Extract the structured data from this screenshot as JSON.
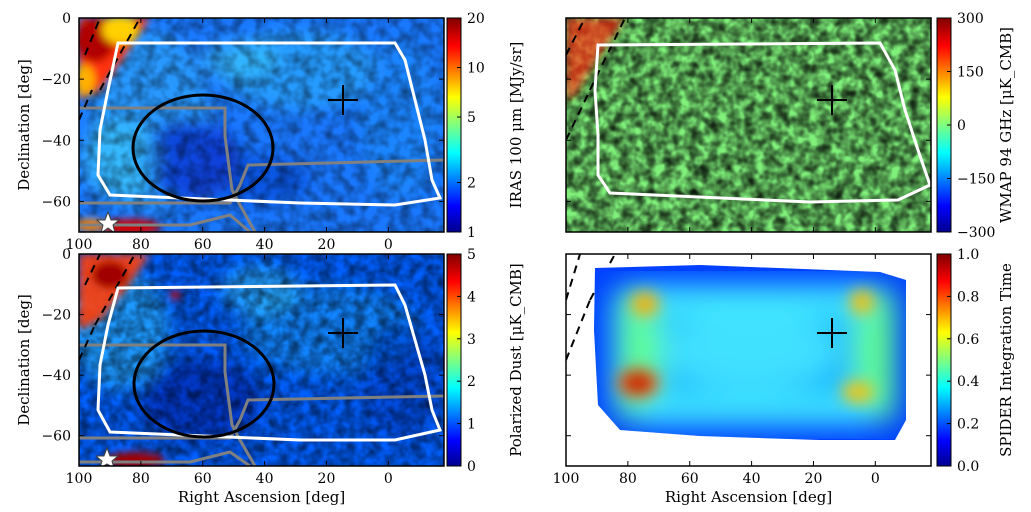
{
  "chart_data": [
    {
      "type": "heatmap",
      "title": "",
      "xlabel": "",
      "ylabel": "Declination [deg]",
      "xlim": [
        100,
        -18
      ],
      "ylim": [
        -70,
        0
      ],
      "x_ticks": [
        "100",
        "80",
        "60",
        "40",
        "20",
        "0"
      ],
      "y_ticks": [
        "0",
        "−20",
        "−40",
        "−60"
      ],
      "colorbar": {
        "label": "IRAS 100 μm [MJy/sr]",
        "scale": "log",
        "range": [
          1,
          20
        ],
        "ticks": [
          "20",
          "10",
          "5",
          "2",
          "1"
        ]
      },
      "markers": {
        "cross": [
          13,
          -26
        ],
        "star": [
          91,
          -67
        ]
      },
      "circle": {
        "center": [
          58,
          -36
        ],
        "radius_deg": 11.5
      }
    },
    {
      "type": "heatmap",
      "title": "",
      "xlabel": "",
      "ylabel": "",
      "xlim": [
        100,
        -18
      ],
      "ylim": [
        -70,
        0
      ],
      "colorbar": {
        "label": "WMAP 94 GHz [μK_CMB]",
        "scale": "linear",
        "range": [
          -300,
          300
        ],
        "ticks": [
          "300",
          "150",
          "0",
          "−150",
          "−300"
        ]
      },
      "markers": {
        "cross": [
          13,
          -26
        ]
      }
    },
    {
      "type": "heatmap",
      "title": "",
      "xlabel": "Right Ascension [deg]",
      "ylabel": "Declination [deg]",
      "xlim": [
        100,
        -18
      ],
      "ylim": [
        -70,
        0
      ],
      "x_ticks": [
        "100",
        "80",
        "60",
        "40",
        "20",
        "0"
      ],
      "y_ticks": [
        "0",
        "−20",
        "−40",
        "−60"
      ],
      "colorbar": {
        "label": "Polarized Dust [μK_CMB]",
        "scale": "linear",
        "range": [
          0,
          5
        ],
        "ticks": [
          "5",
          "4",
          "3",
          "2",
          "1",
          "0"
        ]
      },
      "markers": {
        "cross": [
          13,
          -26
        ],
        "star": [
          91,
          -67
        ]
      },
      "circle": {
        "center": [
          58,
          -36
        ],
        "radius_deg": 11.5
      }
    },
    {
      "type": "heatmap",
      "title": "",
      "xlabel": "Right Ascension [deg]",
      "ylabel": "",
      "xlim": [
        100,
        -18
      ],
      "ylim": [
        -70,
        0
      ],
      "x_ticks": [
        "100",
        "80",
        "60",
        "40",
        "20",
        "0"
      ],
      "colorbar": {
        "label": "SPIDER Integration Time",
        "scale": "linear",
        "range": [
          0,
          1
        ],
        "ticks": [
          "1.0",
          "0.8",
          "0.6",
          "0.4",
          "0.2",
          "0.0"
        ]
      },
      "markers": {
        "cross": [
          13,
          -26
        ]
      },
      "hotspots": [
        [
          76,
          -27
        ],
        [
          73,
          -45
        ],
        [
          7,
          -27
        ],
        [
          7,
          -44
        ]
      ]
    }
  ],
  "colors": {
    "jet_low": "#00008f",
    "jet_mid": "#7fff7f",
    "jet_high": "#800000",
    "frame": "#000000",
    "footprint": "#ffffff",
    "plane": "#808080"
  }
}
